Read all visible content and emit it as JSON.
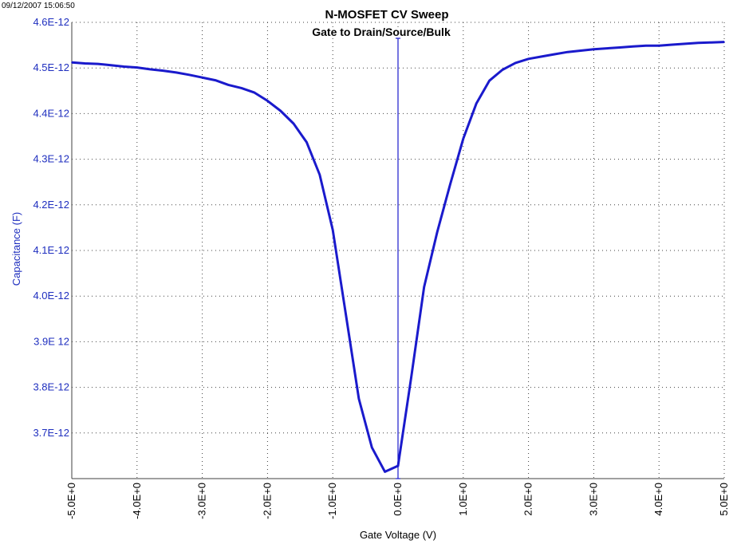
{
  "timestamp": "09/12/2007 15:06:50",
  "colors": {
    "series": "#1a1acc",
    "ylabel": "#1f2fbf",
    "grid": "#404040"
  },
  "chart_data": {
    "type": "line",
    "title": "N-MOSFET CV Sweep",
    "subtitle": "Gate to Drain/Source/Bulk",
    "xlabel": "Gate Voltage (V)",
    "ylabel": "Capacitance (F)",
    "xlim": [
      -5,
      5
    ],
    "ylim": [
      3.6e-12,
      4.6e-12
    ],
    "grid": true,
    "x_ticks": [
      -5,
      -4,
      -3,
      -2,
      -1,
      0,
      1,
      2,
      3,
      4,
      5
    ],
    "x_tick_labels": [
      "-5.0E+0",
      "-4.0E+0",
      "-3.0E+0",
      "-2.0E+0",
      "-1.0E+0",
      "0.0E+0",
      "1.0E+0",
      "2.0E+0",
      "3.0E+0",
      "4.0E+0",
      "5.0E+0"
    ],
    "y_ticks": [
      3.7e-12,
      3.8e-12,
      3.9e-12,
      4e-12,
      4.1e-12,
      4.2e-12,
      4.3e-12,
      4.4e-12,
      4.5e-12,
      4.6e-12
    ],
    "y_tick_labels": [
      "3.7E-12",
      "3.8E-12",
      "3.9E 12",
      "4.0E-12",
      "4.1E-12",
      "4.2E-12",
      "4.3E-12",
      "4.4E-12",
      "4.5E-12",
      "4.6E-12"
    ],
    "vertical_marker_x": 0,
    "series": [
      {
        "x": [
          -5.0,
          -4.8,
          -4.6,
          -4.4,
          -4.2,
          -4.0,
          -3.8,
          -3.6,
          -3.4,
          -3.2,
          -3.0,
          -2.8,
          -2.6,
          -2.4,
          -2.2,
          -2.0,
          -1.8,
          -1.6,
          -1.4,
          -1.2,
          -1.0,
          -0.8,
          -0.6,
          -0.4,
          -0.2,
          0.0,
          0.2,
          0.4,
          0.6,
          0.8,
          1.0,
          1.2,
          1.4,
          1.6,
          1.8,
          2.0,
          2.2,
          2.4,
          2.6,
          2.8,
          3.0,
          3.2,
          3.4,
          3.6,
          3.8,
          4.0,
          4.2,
          4.4,
          4.6,
          4.8,
          5.0
        ],
        "y": [
          4.512e-12,
          4.51e-12,
          4.509e-12,
          4.506e-12,
          4.503e-12,
          4.501e-12,
          4.497e-12,
          4.494e-12,
          4.49e-12,
          4.485e-12,
          4.479e-12,
          4.473e-12,
          4.463e-12,
          4.456e-12,
          4.446e-12,
          4.428e-12,
          4.406e-12,
          4.378e-12,
          4.337e-12,
          4.266e-12,
          4.145e-12,
          3.96e-12,
          3.775e-12,
          3.668e-12,
          3.615e-12,
          3.628e-12,
          3.82e-12,
          4.02e-12,
          4.14e-12,
          4.245e-12,
          4.345e-12,
          4.422e-12,
          4.472e-12,
          4.496e-12,
          4.511e-12,
          4.52e-12,
          4.525e-12,
          4.53e-12,
          4.535e-12,
          4.538e-12,
          4.541e-12,
          4.543e-12,
          4.545e-12,
          4.547e-12,
          4.549e-12,
          4.549e-12,
          4.551e-12,
          4.553e-12,
          4.555e-12,
          4.556e-12,
          4.557e-12
        ]
      }
    ]
  }
}
